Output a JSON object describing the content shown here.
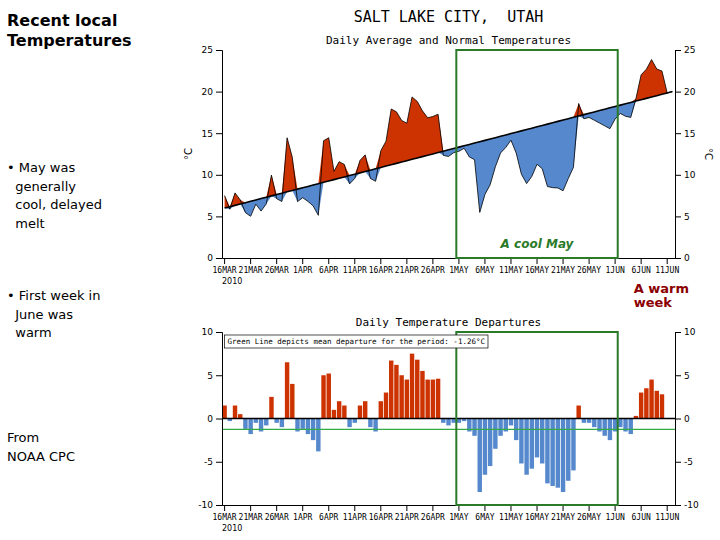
{
  "title": "SALT LAKE CITY,  UTAH",
  "side_texts": [
    "Recent local\nTemperatures",
    "• May was\n  generally\n  cool, delayed\n  melt",
    "• First week in\n  June was\n  warm",
    "From\nNOAA CPC"
  ],
  "annotations": [
    {
      "text": "A warm\nweek",
      "color": "#8b0000"
    }
  ],
  "chart_data": [
    {
      "type": "line",
      "title": "Daily Average and Normal Temperatures",
      "ylabel": "°C",
      "y2label": "°C",
      "categories": [
        "16MAR",
        null,
        null,
        null,
        null,
        "21MAR",
        null,
        null,
        null,
        null,
        "26MAR",
        null,
        null,
        null,
        null,
        "1APR",
        null,
        null,
        null,
        null,
        "6APR",
        null,
        null,
        null,
        null,
        "11APR",
        null,
        null,
        null,
        null,
        "16APR",
        null,
        null,
        null,
        null,
        "21APR",
        null,
        null,
        null,
        null,
        "26APR",
        null,
        null,
        null,
        null,
        "1MAY",
        null,
        null,
        null,
        null,
        "6MAY",
        null,
        null,
        null,
        null,
        "11MAY",
        null,
        null,
        null,
        null,
        "16MAY",
        null,
        null,
        null,
        null,
        "21MAY",
        null,
        null,
        null,
        null,
        "26MAY",
        null,
        null,
        null,
        null,
        "1JUN",
        null,
        null,
        null,
        null,
        "6JUN",
        null,
        null,
        null,
        null,
        "11JUN",
        null
      ],
      "series": [
        {
          "color": "#000000",
          "values": [
            6,
            6.163,
            6.326,
            6.488,
            6.651,
            6.814,
            6.977,
            7.14,
            7.302,
            7.465,
            7.628,
            7.791,
            7.953,
            8.116,
            8.279,
            8.442,
            8.605,
            8.767,
            8.93,
            9.093,
            9.256,
            9.419,
            9.581,
            9.744,
            9.907,
            10.07,
            10.233,
            10.395,
            10.558,
            10.721,
            10.884,
            11.047,
            11.209,
            11.372,
            11.535,
            11.698,
            11.86,
            12.023,
            12.186,
            12.349,
            12.512,
            12.674,
            12.837,
            13,
            13.163,
            13.326,
            13.488,
            13.651,
            13.814,
            13.977,
            14.14,
            14.302,
            14.465,
            14.628,
            14.791,
            14.953,
            15.116,
            15.279,
            15.442,
            15.605,
            15.767,
            15.93,
            16.093,
            16.256,
            16.419,
            16.581,
            16.744,
            16.907,
            17.07,
            17.233,
            17.395,
            17.558,
            17.721,
            17.884,
            18.047,
            18.209,
            18.372,
            18.535,
            18.698,
            18.86,
            19.023,
            19.186,
            19.349,
            19.512,
            19.674,
            19.837,
            20
          ]
        },
        {
          "color": "#000000",
          "values": [
            7.5,
            5.863,
            7.826,
            6.988,
            5.451,
            5.014,
            6.477,
            5.64,
            6.502,
            9.965,
            7.128,
            6.791,
            14.453,
            12.116,
            6.779,
            7.242,
            6.805,
            6.267,
            5.13,
            14.093,
            14.456,
            10.419,
            11.581,
            11.244,
            8.907,
            9.57,
            11.733,
            12.395,
            9.558,
            9.221,
            12.884,
            14.047,
            17.909,
            17.572,
            16.535,
            16.198,
            19.36,
            18.823,
            17.686,
            16.849,
            17.012,
            17.274,
            12.337,
            12.2,
            12.663,
            12.826,
            13.188,
            12.151,
            11.814,
            5.477,
            7.64,
            8.802,
            10.965,
            12.628,
            13.291,
            14.153,
            12.616,
            10.079,
            8.942,
            9.805,
            11.267,
            10.73,
            8.593,
            8.456,
            8.419,
            8.081,
            9.544,
            10.907,
            18.57,
            16.733,
            16.895,
            16.558,
            16.221,
            15.884,
            15.547,
            16.709,
            17.372,
            17.035,
            16.898,
            19.16,
            22.023,
            22.686,
            23.849,
            22.712,
            22.474,
            19.837,
            20
          ]
        }
      ],
      "colors": [
        "#cc3300",
        "#5588cc"
      ],
      "ylim": [
        0,
        25
      ],
      "yticks": [
        0,
        5,
        10,
        15,
        20,
        25
      ],
      "y2lim": [
        0,
        25
      ],
      "y2ticks": [
        0,
        5,
        10,
        15,
        20,
        25
      ],
      "grid": false,
      "highlight": {
        "from": "1MAY",
        "to": "1JUN",
        "color": "#2a7a2a",
        "text": "A cool May"
      },
      "year_label": "2010"
    },
    {
      "type": "bar",
      "title": "Daily Temperature Departures",
      "categories": [
        "16MAR",
        null,
        null,
        null,
        null,
        "21MAR",
        null,
        null,
        null,
        null,
        "26MAR",
        null,
        null,
        null,
        null,
        "1APR",
        null,
        null,
        null,
        null,
        "6APR",
        null,
        null,
        null,
        null,
        "11APR",
        null,
        null,
        null,
        null,
        "16APR",
        null,
        null,
        null,
        null,
        "21APR",
        null,
        null,
        null,
        null,
        "26APR",
        null,
        null,
        null,
        null,
        "1MAY",
        null,
        null,
        null,
        null,
        "6MAY",
        null,
        null,
        null,
        null,
        "11MAY",
        null,
        null,
        null,
        null,
        "16MAY",
        null,
        null,
        null,
        null,
        "21MAY",
        null,
        null,
        null,
        null,
        "26MAY",
        null,
        null,
        null,
        null,
        "1JUN",
        null,
        null,
        null,
        null,
        "6JUN",
        null,
        null,
        null,
        null,
        "11JUN",
        null
      ],
      "values": [
        1.5,
        -0.3,
        1.5,
        0.5,
        -1.2,
        -1.8,
        -0.5,
        -1.5,
        -0.8,
        2.5,
        -0.5,
        -1.0,
        6.5,
        4.0,
        -1.5,
        -1.2,
        -1.8,
        -2.5,
        -3.8,
        5.0,
        5.2,
        1.0,
        2.0,
        1.5,
        -1.0,
        -0.5,
        1.5,
        2.0,
        -1.0,
        -1.5,
        2.0,
        3.0,
        6.7,
        6.2,
        5.0,
        4.5,
        7.5,
        6.8,
        5.5,
        4.5,
        4.5,
        4.6,
        -0.5,
        -0.8,
        -0.5,
        -0.5,
        -0.3,
        -1.5,
        -2.0,
        -8.5,
        -6.5,
        -5.5,
        -3.5,
        -2.0,
        -1.5,
        -0.8,
        -2.5,
        -5.2,
        -6.5,
        -5.8,
        -4.5,
        -5.2,
        -7.5,
        -7.8,
        -8.0,
        -8.5,
        -7.2,
        -6.0,
        1.5,
        -0.5,
        -0.5,
        -1.0,
        -1.5,
        -2.0,
        -2.5,
        -1.5,
        -1.0,
        -1.5,
        -1.8,
        0.3,
        3.0,
        3.5,
        4.5,
        3.2,
        2.8,
        0.0,
        0.0
      ],
      "colors": [
        "#cc3300",
        "#5588cc",
        "#cc3300",
        "#cc3300",
        "#5588cc",
        "#5588cc",
        "#5588cc",
        "#5588cc",
        "#5588cc",
        "#cc3300",
        "#5588cc",
        "#5588cc",
        "#cc3300",
        "#cc3300",
        "#5588cc",
        "#5588cc",
        "#5588cc",
        "#5588cc",
        "#5588cc",
        "#cc3300",
        "#cc3300",
        "#cc3300",
        "#cc3300",
        "#cc3300",
        "#5588cc",
        "#5588cc",
        "#cc3300",
        "#cc3300",
        "#5588cc",
        "#5588cc",
        "#cc3300",
        "#cc3300",
        "#cc3300",
        "#cc3300",
        "#cc3300",
        "#cc3300",
        "#cc3300",
        "#cc3300",
        "#cc3300",
        "#cc3300",
        "#cc3300",
        "#cc3300",
        "#5588cc",
        "#5588cc",
        "#5588cc",
        "#5588cc",
        "#5588cc",
        "#5588cc",
        "#5588cc",
        "#5588cc",
        "#5588cc",
        "#5588cc",
        "#5588cc",
        "#5588cc",
        "#5588cc",
        "#5588cc",
        "#5588cc",
        "#5588cc",
        "#5588cc",
        "#5588cc",
        "#5588cc",
        "#5588cc",
        "#5588cc",
        "#5588cc",
        "#5588cc",
        "#5588cc",
        "#5588cc",
        "#5588cc",
        "#cc3300",
        "#5588cc",
        "#5588cc",
        "#5588cc",
        "#5588cc",
        "#5588cc",
        "#5588cc",
        "#5588cc",
        "#5588cc",
        "#5588cc",
        "#5588cc",
        "#cc3300",
        "#cc3300",
        "#cc3300",
        "#cc3300",
        "#cc3300",
        "#cc3300",
        "#cc3300",
        "#cc3300"
      ],
      "ylim": [
        -10,
        10
      ],
      "yticks": [
        -10,
        -5,
        0,
        5,
        10
      ],
      "y2lim": [
        -10,
        10
      ],
      "y2ticks": [
        -10,
        -5,
        0,
        5,
        10
      ],
      "grid": false,
      "reference_lines": [
        {
          "value": 0,
          "color": "#000000"
        },
        {
          "value": -1.26,
          "color": "#33aa44"
        }
      ],
      "note": "Green Line depicts mean departure for the period: -1.26°C",
      "highlight": {
        "from": "1MAY",
        "to": "1JUN",
        "color": "#2a7a2a"
      },
      "year_label": "2010"
    }
  ]
}
